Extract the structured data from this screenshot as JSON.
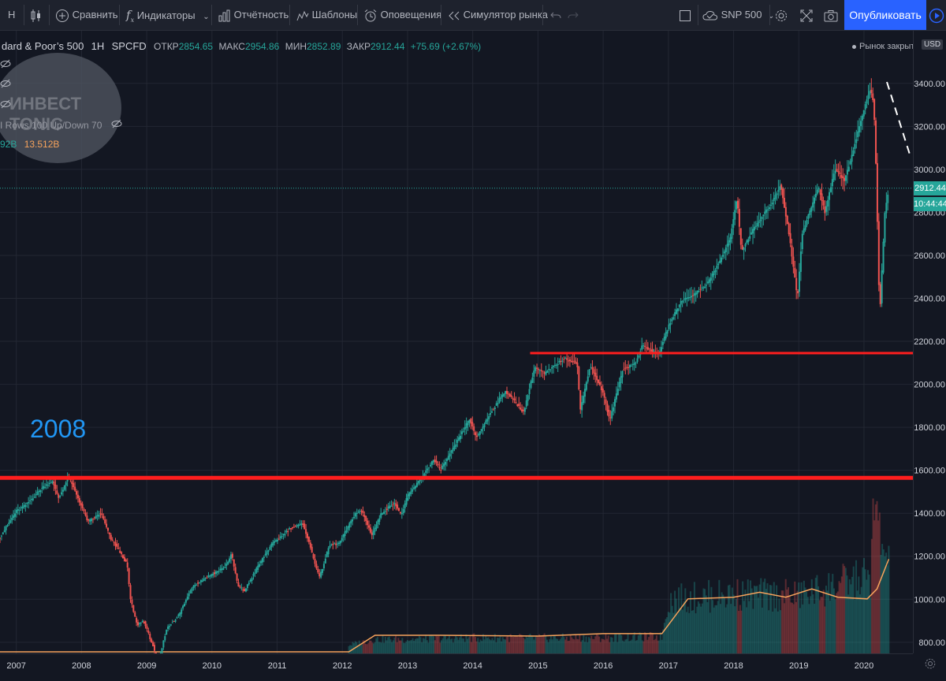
{
  "toolbar": {
    "interval": "Н",
    "compare": "Сравнить",
    "indicators": "Индикаторы",
    "report": "Отчётность",
    "templates": "Шаблоны",
    "alerts": "Оповещения",
    "replay": "Симулятор рынка",
    "layout_name": "SNP 500",
    "publish": "Опубликовать"
  },
  "legend": {
    "title": "dard & Poor’s 500",
    "interval": "1H",
    "exchange": "SPCFD",
    "open_label": "ОТКР",
    "open": "2854.65",
    "high_label": "МАКС",
    "high": "2954.86",
    "low_label": "МИН",
    "low": "2852.89",
    "close_label": "ЗАКР",
    "close": "2912.44",
    "change": "+75.69 (+2.67%)",
    "vp_text": "I Rows 100 Up/Down 70",
    "vol_green": "92B",
    "vol_orange": "13.512B"
  },
  "market_status": "Рынок закрыт",
  "currency": "USD",
  "price_label": "2912.44",
  "time_label": "10:44:44",
  "annotation_year": "2008",
  "watermark": "ИНВЕСТ TONIC",
  "colors": {
    "up": "#26a69a",
    "down": "#ef5350",
    "red_line": "#ff1e1e",
    "volume_ma": "#f7a35c",
    "annotation": "#2196f3",
    "publish": "#2962ff"
  },
  "chart_data": {
    "type": "candlestick",
    "symbol": "SPCFD",
    "y_ticks": [
      800,
      1000,
      1200,
      1400,
      1600,
      1800,
      2000,
      2200,
      2400,
      2600,
      2800,
      3000,
      3200,
      3400
    ],
    "y_tick_labels": [
      "800.00",
      "1000.00",
      "1200.00",
      "1400.00",
      "1600.00",
      "1800.00",
      "2000.00",
      "2200.00",
      "2400.00",
      "2600.00",
      "2800.00",
      "3000.00",
      "3200.00",
      "3400.00"
    ],
    "ylim": [
      748,
      3645
    ],
    "x_ticks": [
      "2007",
      "2008",
      "2009",
      "2010",
      "2011",
      "2012",
      "2013",
      "2014",
      "2015",
      "2016",
      "2017",
      "2018",
      "2019",
      "2020"
    ],
    "xlim": [
      2006.75,
      2020.75
    ],
    "series": [
      {
        "name": "price",
        "points": [
          [
            2006.75,
            1290
          ],
          [
            2007.0,
            1410
          ],
          [
            2007.15,
            1440
          ],
          [
            2007.4,
            1520
          ],
          [
            2007.55,
            1550
          ],
          [
            2007.65,
            1470
          ],
          [
            2007.8,
            1570
          ],
          [
            2007.92,
            1490
          ],
          [
            2008.1,
            1360
          ],
          [
            2008.3,
            1400
          ],
          [
            2008.45,
            1280
          ],
          [
            2008.55,
            1240
          ],
          [
            2008.7,
            1160
          ],
          [
            2008.75,
            1000
          ],
          [
            2008.85,
            880
          ],
          [
            2008.95,
            900
          ],
          [
            2009.1,
            780
          ],
          [
            2009.17,
            690
          ],
          [
            2009.3,
            860
          ],
          [
            2009.5,
            930
          ],
          [
            2009.7,
            1060
          ],
          [
            2009.9,
            1100
          ],
          [
            2010.2,
            1150
          ],
          [
            2010.3,
            1210
          ],
          [
            2010.4,
            1060
          ],
          [
            2010.5,
            1040
          ],
          [
            2010.7,
            1150
          ],
          [
            2010.9,
            1250
          ],
          [
            2011.2,
            1330
          ],
          [
            2011.4,
            1350
          ],
          [
            2011.55,
            1200
          ],
          [
            2011.65,
            1100
          ],
          [
            2011.8,
            1250
          ],
          [
            2011.95,
            1260
          ],
          [
            2012.2,
            1400
          ],
          [
            2012.3,
            1410
          ],
          [
            2012.45,
            1300
          ],
          [
            2012.6,
            1400
          ],
          [
            2012.8,
            1450
          ],
          [
            2012.9,
            1390
          ],
          [
            2013.0,
            1480
          ],
          [
            2013.2,
            1560
          ],
          [
            2013.4,
            1650
          ],
          [
            2013.5,
            1600
          ],
          [
            2013.7,
            1700
          ],
          [
            2013.95,
            1840
          ],
          [
            2014.05,
            1750
          ],
          [
            2014.3,
            1880
          ],
          [
            2014.5,
            1970
          ],
          [
            2014.78,
            1870
          ],
          [
            2014.95,
            2080
          ],
          [
            2015.1,
            2050
          ],
          [
            2015.4,
            2120
          ],
          [
            2015.6,
            2100
          ],
          [
            2015.65,
            1880
          ],
          [
            2015.8,
            2090
          ],
          [
            2016.0,
            1960
          ],
          [
            2016.1,
            1830
          ],
          [
            2016.3,
            2070
          ],
          [
            2016.5,
            2100
          ],
          [
            2016.6,
            2180
          ],
          [
            2016.85,
            2140
          ],
          [
            2017.0,
            2270
          ],
          [
            2017.2,
            2390
          ],
          [
            2017.4,
            2420
          ],
          [
            2017.6,
            2470
          ],
          [
            2017.8,
            2580
          ],
          [
            2017.95,
            2680
          ],
          [
            2018.05,
            2870
          ],
          [
            2018.12,
            2620
          ],
          [
            2018.3,
            2720
          ],
          [
            2018.6,
            2850
          ],
          [
            2018.72,
            2930
          ],
          [
            2018.85,
            2700
          ],
          [
            2018.98,
            2400
          ],
          [
            2019.05,
            2700
          ],
          [
            2019.3,
            2920
          ],
          [
            2019.4,
            2800
          ],
          [
            2019.55,
            3000
          ],
          [
            2019.7,
            2950
          ],
          [
            2019.8,
            3050
          ],
          [
            2020.0,
            3280
          ],
          [
            2020.1,
            3380
          ],
          [
            2020.15,
            3300
          ],
          [
            2020.18,
            3050
          ],
          [
            2020.21,
            2700
          ],
          [
            2020.24,
            2300
          ],
          [
            2020.27,
            2500
          ],
          [
            2020.32,
            2800
          ],
          [
            2020.38,
            2912
          ]
        ]
      },
      {
        "name": "volume",
        "points": [
          [
            2012.1,
            0.06
          ],
          [
            2012.5,
            0.1
          ],
          [
            2013.0,
            0.1
          ],
          [
            2014.0,
            0.11
          ],
          [
            2015.0,
            0.11
          ],
          [
            2016.0,
            0.11
          ],
          [
            2016.9,
            0.12
          ],
          [
            2017.0,
            0.38
          ],
          [
            2018.0,
            0.42
          ],
          [
            2019.0,
            0.41
          ],
          [
            2020.1,
            0.55
          ],
          [
            2020.15,
            1.0
          ],
          [
            2020.38,
            0.6
          ]
        ]
      },
      {
        "name": "volume_ma",
        "points": [
          [
            2006.75,
            0.0
          ],
          [
            2012.1,
            0.0
          ],
          [
            2012.5,
            0.1
          ],
          [
            2013.5,
            0.1
          ],
          [
            2015.0,
            0.095
          ],
          [
            2016.0,
            0.11
          ],
          [
            2016.9,
            0.11
          ],
          [
            2017.3,
            0.32
          ],
          [
            2018.0,
            0.33
          ],
          [
            2018.4,
            0.36
          ],
          [
            2018.8,
            0.33
          ],
          [
            2019.2,
            0.38
          ],
          [
            2019.6,
            0.33
          ],
          [
            2020.05,
            0.32
          ],
          [
            2020.2,
            0.38
          ],
          [
            2020.38,
            0.56
          ]
        ]
      }
    ],
    "horizontal_lines": [
      {
        "name": "support-2008-high",
        "y": 1565,
        "x_start": 2006.75,
        "x_end": 2020.75
      },
      {
        "name": "support-2015-high",
        "y": 2145,
        "x_start": 2014.88,
        "x_end": 2020.75
      }
    ],
    "last_price": 2912.44,
    "grid": true
  }
}
